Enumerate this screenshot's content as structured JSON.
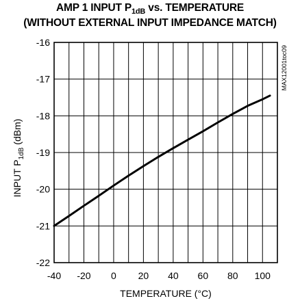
{
  "chart_data": {
    "type": "line",
    "title_line1_pre": "AMP 1 INPUT P",
    "title_line1_sub": "1dB",
    "title_line1_post": " vs. TEMPERATURE",
    "title_line2": "(WITHOUT EXTERNAL INPUT IMPEDANCE MATCH)",
    "xlabel": "TEMPERATURE (°C)",
    "ylabel_pre": "INPUT P",
    "ylabel_sub": "1dB",
    "ylabel_post": " (dBm)",
    "side_id": "MAX12001toc09",
    "xlim": [
      -40,
      110
    ],
    "ylim": [
      -22,
      -16
    ],
    "x_ticks": [
      -40,
      -20,
      0,
      20,
      40,
      60,
      80,
      100
    ],
    "y_ticks": [
      -16,
      -17,
      -18,
      -19,
      -20,
      -21,
      -22
    ],
    "grid": true,
    "series": [
      {
        "x": [
          -40,
          -30,
          -20,
          -10,
          0,
          10,
          20,
          30,
          40,
          50,
          60,
          70,
          80,
          90,
          100,
          105
        ],
        "y": [
          -21.0,
          -20.73,
          -20.45,
          -20.18,
          -19.9,
          -19.63,
          -19.37,
          -19.12,
          -18.88,
          -18.65,
          -18.42,
          -18.18,
          -17.95,
          -17.73,
          -17.55,
          -17.45
        ]
      }
    ]
  }
}
